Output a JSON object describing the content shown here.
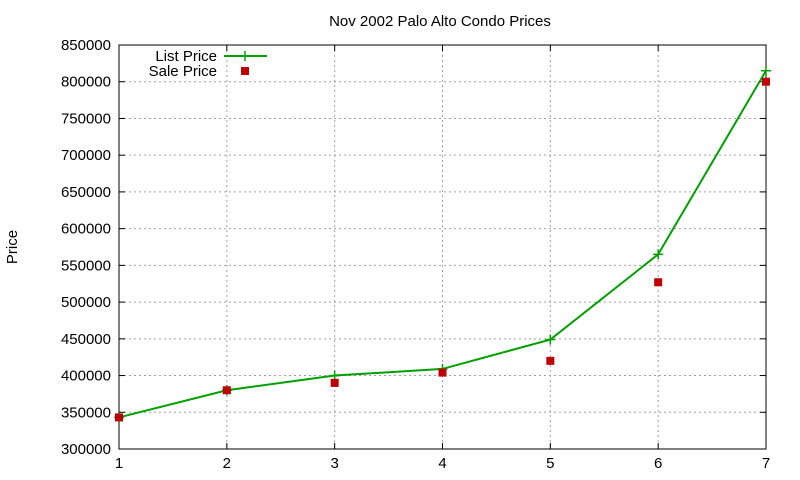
{
  "chart_data": {
    "type": "line",
    "title": "Nov 2002 Palo Alto Condo Prices",
    "xlabel": "",
    "ylabel": "Price",
    "xlim": [
      1,
      7
    ],
    "ylim": [
      300000,
      850000
    ],
    "xticks": [
      1,
      2,
      3,
      4,
      5,
      6,
      7
    ],
    "yticks": [
      300000,
      350000,
      400000,
      450000,
      500000,
      550000,
      600000,
      650000,
      700000,
      750000,
      800000,
      850000
    ],
    "grid": true,
    "legend_position": "top-left",
    "series": [
      {
        "name": "List Price",
        "style": "lines+points",
        "marker": "plus",
        "color": "#00a000",
        "x": [
          1,
          2,
          3,
          4,
          5,
          6,
          7
        ],
        "y": [
          343000,
          380000,
          400000,
          409000,
          449000,
          565000,
          815000
        ]
      },
      {
        "name": "Sale Price",
        "style": "points",
        "marker": "square",
        "color": "#c00000",
        "x": [
          1,
          2,
          3,
          4,
          5,
          6,
          7
        ],
        "y": [
          343000,
          380000,
          390000,
          404000,
          420000,
          527000,
          800000
        ]
      }
    ]
  }
}
